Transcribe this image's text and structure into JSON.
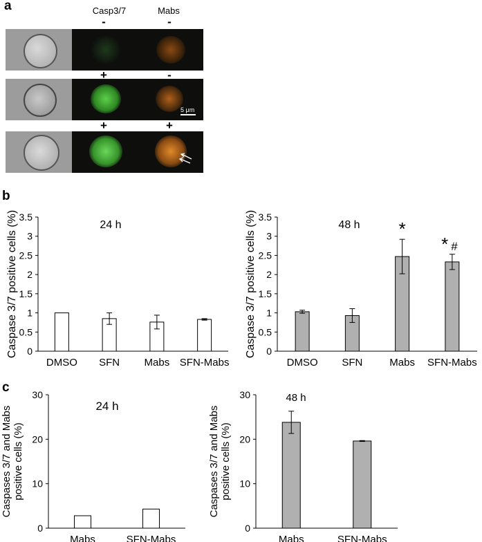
{
  "panel_a": {
    "label": "a",
    "col_headers": [
      "Casp3/7",
      "Mabs"
    ],
    "rows": [
      {
        "casp": "-",
        "mabs": "-",
        "green_level": 0.15,
        "orange_level": 0.45
      },
      {
        "casp": "+",
        "mabs": "-",
        "green_level": 0.85,
        "orange_level": 0.4
      },
      {
        "casp": "+",
        "mabs": "+",
        "green_level": 0.9,
        "orange_level": 0.85
      }
    ],
    "scale_bar": "5 μm"
  },
  "panel_b_label": "b",
  "panel_c_label": "c",
  "chart_data": [
    {
      "type": "bar",
      "title": "24 h",
      "ylabel": "Caspase 3/7 positive cells (%)",
      "categories": [
        "DMSO",
        "SFN",
        "Mabs",
        "SFN-Mabs"
      ],
      "values": [
        1.0,
        0.85,
        0.76,
        0.83
      ],
      "errors": [
        0,
        0.15,
        0.18,
        0.02
      ],
      "ylim": [
        0,
        3.5
      ],
      "yticks": [
        "0",
        "0.5",
        "1",
        "1.5",
        "2",
        "2.5",
        "3",
        "3.5"
      ],
      "fill": "#ffffff",
      "annotations": [
        "",
        "",
        "",
        ""
      ]
    },
    {
      "type": "bar",
      "title": "48 h",
      "ylabel": "Caspase 3/7 positive cells (%)",
      "categories": [
        "DMSO",
        "SFN",
        "Mabs",
        "SFN-Mabs"
      ],
      "values": [
        1.03,
        0.93,
        2.47,
        2.33
      ],
      "errors": [
        0.04,
        0.18,
        0.45,
        0.2
      ],
      "ylim": [
        0,
        3.5
      ],
      "yticks": [
        "0",
        "0.5",
        "1",
        "1.5",
        "2",
        "2.5",
        "3",
        "3.5"
      ],
      "fill": "#b0b0b0",
      "annotations": [
        "",
        "",
        "*",
        "* #"
      ]
    },
    {
      "type": "bar",
      "title": "24 h",
      "ylabel": "Caspases 3/7 and Mabs positive cells (%)",
      "categories": [
        "Mabs",
        "SFN-Mabs"
      ],
      "values": [
        2.8,
        4.3
      ],
      "errors": [
        0,
        0
      ],
      "ylim": [
        0,
        30
      ],
      "yticks": [
        "0",
        "10",
        "20",
        "30"
      ],
      "fill": "#ffffff",
      "annotations": [
        "",
        ""
      ]
    },
    {
      "type": "bar",
      "title": "48 h",
      "ylabel": "Caspases 3/7 and Mabs positive cells (%)",
      "categories": [
        "Mabs",
        "SFN-Mabs"
      ],
      "values": [
        23.8,
        19.6
      ],
      "errors": [
        2.5,
        0.1
      ],
      "ylim": [
        0,
        30
      ],
      "yticks": [
        "0",
        "10",
        "20",
        "30"
      ],
      "fill": "#b0b0b0",
      "annotations": [
        "",
        ""
      ]
    }
  ]
}
